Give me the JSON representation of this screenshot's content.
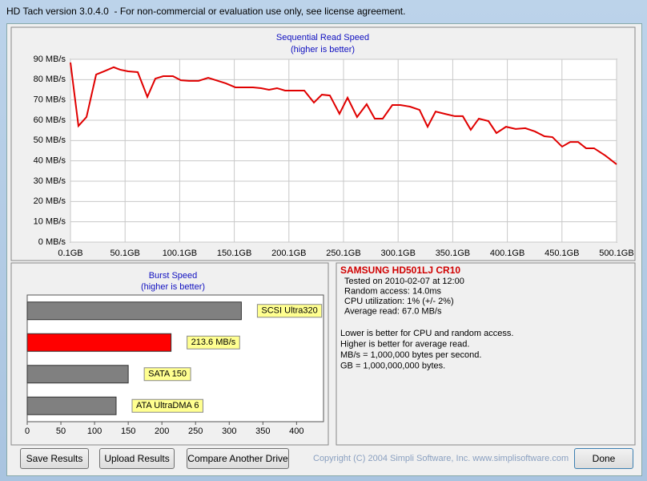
{
  "window": {
    "title": "HD Tach version 3.0.4.0  - For non-commercial or evaluation use only, see license agreement."
  },
  "chart_data": [
    {
      "type": "line",
      "title": "Sequential Read Speed",
      "subtitle": "(higher is better)",
      "x": [
        0.1,
        7.4,
        14.8,
        23.6,
        30.9,
        39.7,
        45.6,
        52.9,
        61.7,
        70.5,
        77.8,
        85.1,
        93.9,
        101.2,
        108.6,
        117.4,
        126.2,
        135,
        142.3,
        151.1,
        158.4,
        167.2,
        174.6,
        181.9,
        189.2,
        196.6,
        205.4,
        214.2,
        223,
        230.3,
        237.6,
        246.4,
        253.8,
        262.5,
        271.3,
        278.7,
        286,
        294.8,
        302.1,
        310.9,
        319.7,
        327.1,
        334.4,
        343.2,
        352,
        359.3,
        366.6,
        374,
        382.8,
        390.1,
        398.9,
        407.7,
        416.5,
        425.3,
        434.1,
        441.4,
        450.2,
        457.6,
        464.9,
        472.2,
        479.5,
        489.8,
        500.1
      ],
      "series": [
        {
          "color": "#e00000",
          "values": [
            88.4,
            57.2,
            61.6,
            82.5,
            84.1,
            86.1,
            84.9,
            84.1,
            83.7,
            71.5,
            80.5,
            81.7,
            81.7,
            79.7,
            79.4,
            79.4,
            80.9,
            79.4,
            78.2,
            76.2,
            76.2,
            76.2,
            75.8,
            75,
            75.8,
            74.6,
            74.6,
            74.6,
            68.7,
            72.6,
            72.2,
            63.2,
            71.1,
            61.6,
            67.9,
            60.8,
            60.8,
            67.5,
            67.5,
            66.7,
            65.1,
            56.8,
            64.3,
            63.1,
            62,
            62,
            55.3,
            60.8,
            59.6,
            53.7,
            56.8,
            55.7,
            56.1,
            54.5,
            52.1,
            51.7,
            47,
            49.3,
            49.3,
            46.2,
            46.2,
            42.6,
            38.3
          ]
        }
      ],
      "xlim": [
        0.1,
        500.1
      ],
      "xticks": [
        {
          "value": 0.1,
          "label": "0.1GB"
        },
        {
          "value": 50.1,
          "label": "50.1GB"
        },
        {
          "value": 100.1,
          "label": "100.1GB"
        },
        {
          "value": 150.1,
          "label": "150.1GB"
        },
        {
          "value": 200.1,
          "label": "200.1GB"
        },
        {
          "value": 250.1,
          "label": "250.1GB"
        },
        {
          "value": 300.1,
          "label": "300.1GB"
        },
        {
          "value": 350.1,
          "label": "350.1GB"
        },
        {
          "value": 400.1,
          "label": "400.1GB"
        },
        {
          "value": 450.1,
          "label": "450.1GB"
        },
        {
          "value": 500.1,
          "label": "500.1GB"
        }
      ],
      "ylim": [
        0,
        90
      ],
      "yticks": [
        {
          "value": 0,
          "label": "0 MB/s"
        },
        {
          "value": 10,
          "label": "10 MB/s"
        },
        {
          "value": 20,
          "label": "20 MB/s"
        },
        {
          "value": 30,
          "label": "30 MB/s"
        },
        {
          "value": 40,
          "label": "40 MB/s"
        },
        {
          "value": 50,
          "label": "50 MB/s"
        },
        {
          "value": 60,
          "label": "60 MB/s"
        },
        {
          "value": 70,
          "label": "70 MB/s"
        },
        {
          "value": 80,
          "label": "80 MB/s"
        },
        {
          "value": 90,
          "label": "90 MB/s"
        }
      ],
      "grid": true
    },
    {
      "type": "bar",
      "orientation": "horizontal",
      "title": "Burst Speed",
      "subtitle": "(higher is better)",
      "categories": [
        "SCSI Ultra320",
        null,
        "SATA 150",
        "ATA UltraDMA 6"
      ],
      "values": [
        318,
        213.6,
        150,
        132
      ],
      "value_labels": [
        null,
        "213.6 MB/s",
        null,
        null
      ],
      "colors": [
        "#808080",
        "#ff0000",
        "#808080",
        "#808080"
      ],
      "xlim": [
        0,
        440
      ],
      "xticks": [
        0,
        50,
        100,
        150,
        200,
        250,
        300,
        350,
        400
      ],
      "grid": false
    }
  ],
  "info": {
    "drive": "SAMSUNG HD501LJ CR10",
    "lines": [
      "Tested on 2010-02-07 at 12:00",
      "Random access: 14.0ms",
      "CPU utilization: 1% (+/- 2%)",
      "Average read: 67.0 MB/s"
    ],
    "notes": [
      "Lower is better for CPU and random access.",
      "Higher is better for average read.",
      "MB/s = 1,000,000 bytes per second.",
      "GB = 1,000,000,000 bytes."
    ]
  },
  "buttons": [
    "Save Results",
    "Upload Results",
    "Compare Another Drive",
    "Done"
  ],
  "copyright": "Copyright (C) 2004 Simpli Software, Inc. www.simplisoftware.com"
}
